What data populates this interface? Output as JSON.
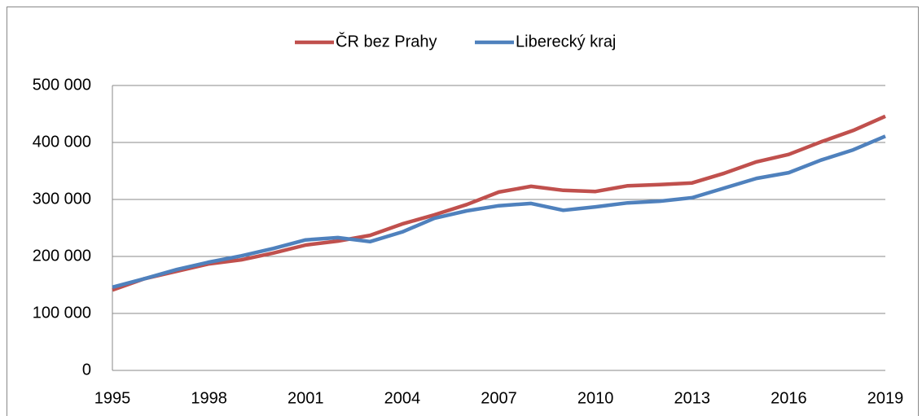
{
  "chart_data": {
    "type": "line",
    "x": [
      1995,
      1996,
      1997,
      1998,
      1999,
      2000,
      2001,
      2002,
      2003,
      2004,
      2005,
      2006,
      2007,
      2008,
      2009,
      2010,
      2011,
      2012,
      2013,
      2014,
      2015,
      2016,
      2017,
      2018,
      2019
    ],
    "series": [
      {
        "name": "ČR bez Prahy",
        "color": "#c0504d",
        "values": [
          141000,
          161000,
          174000,
          187000,
          194000,
          206000,
          220000,
          227000,
          237000,
          257000,
          273000,
          291000,
          313000,
          323000,
          316000,
          314000,
          324000,
          326000,
          329000,
          346000,
          366000,
          379000,
          401000,
          421000,
          446000
        ]
      },
      {
        "name": "Liberecký kraj",
        "color": "#4f81bd",
        "values": [
          146000,
          161000,
          177000,
          190000,
          201000,
          214000,
          229000,
          233000,
          226000,
          243000,
          267000,
          280000,
          289000,
          293000,
          281000,
          287000,
          294000,
          297000,
          303000,
          320000,
          337000,
          347000,
          369000,
          387000,
          411000
        ]
      }
    ],
    "xlim": [
      1995,
      2019
    ],
    "xticks": [
      1995,
      1998,
      2001,
      2004,
      2007,
      2010,
      2013,
      2016,
      2019
    ],
    "ylim": [
      0,
      500000
    ],
    "yticks": [
      0,
      {
        "value": 100000,
        "label": "100 000"
      },
      {
        "value": 200000,
        "label": "200 000"
      },
      {
        "value": 300000,
        "label": "300 000"
      },
      {
        "value": 400000,
        "label": "400 000"
      },
      {
        "value": 500000,
        "label": "500 000"
      }
    ],
    "grid": true,
    "legend": "top"
  }
}
